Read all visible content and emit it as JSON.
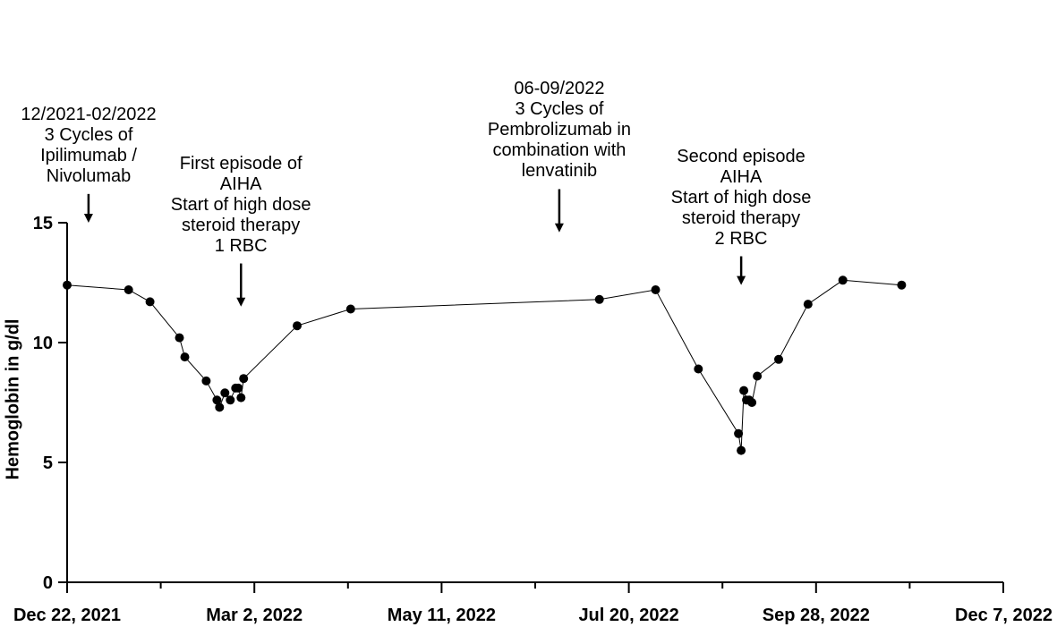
{
  "chart_data": {
    "type": "scatter",
    "ylabel": "Hemoglobin in g/dl",
    "xlabel": "",
    "ylim": [
      0,
      15
    ],
    "xlim": [
      "2021-12-22",
      "2022-12-07"
    ],
    "x_ticks": [
      "Dec 22, 2021",
      "Mar 2, 2022",
      "May 11, 2022",
      "Jul 20, 2022",
      "Sep 28, 2022",
      "Dec 7, 2022"
    ],
    "y_ticks": [
      "0",
      "5",
      "10",
      "15"
    ],
    "line": true,
    "points": [
      {
        "x": "2021-12-22",
        "y": 12.4
      },
      {
        "x": "2022-01-14",
        "y": 12.2
      },
      {
        "x": "2022-01-22",
        "y": 11.7
      },
      {
        "x": "2022-02-02",
        "y": 10.2
      },
      {
        "x": "2022-02-04",
        "y": 9.4
      },
      {
        "x": "2022-02-12",
        "y": 8.4
      },
      {
        "x": "2022-02-16",
        "y": 7.6
      },
      {
        "x": "2022-02-17",
        "y": 7.3
      },
      {
        "x": "2022-02-19",
        "y": 7.9
      },
      {
        "x": "2022-02-21",
        "y": 7.6
      },
      {
        "x": "2022-02-23",
        "y": 8.1
      },
      {
        "x": "2022-02-24",
        "y": 8.1
      },
      {
        "x": "2022-02-25",
        "y": 7.7
      },
      {
        "x": "2022-02-26",
        "y": 8.5
      },
      {
        "x": "2022-03-18",
        "y": 10.7
      },
      {
        "x": "2022-04-07",
        "y": 11.4
      },
      {
        "x": "2022-07-09",
        "y": 11.8
      },
      {
        "x": "2022-07-30",
        "y": 12.2
      },
      {
        "x": "2022-08-15",
        "y": 8.9
      },
      {
        "x": "2022-08-30",
        "y": 6.2
      },
      {
        "x": "2022-08-31",
        "y": 5.5
      },
      {
        "x": "2022-09-01",
        "y": 8.0
      },
      {
        "x": "2022-09-02",
        "y": 7.6
      },
      {
        "x": "2022-09-03",
        "y": 7.6
      },
      {
        "x": "2022-09-04",
        "y": 7.5
      },
      {
        "x": "2022-09-06",
        "y": 8.6
      },
      {
        "x": "2022-09-14",
        "y": 9.3
      },
      {
        "x": "2022-09-25",
        "y": 11.6
      },
      {
        "x": "2022-10-08",
        "y": 12.6
      },
      {
        "x": "2022-10-30",
        "y": 12.4
      }
    ],
    "annotations": [
      {
        "id": "ann1",
        "lines": [
          "12/2021-02/2022",
          "3 Cycles of",
          "Ipilimumab  /",
          "Nivolumab"
        ],
        "arrow_x": "2021-12-30",
        "arrow_y_top": 16.2,
        "arrow_y_bottom": 15.0
      },
      {
        "id": "ann2",
        "lines": [
          "First episode of",
          "AIHA",
          "Start of high dose",
          "steroid therapy",
          "1 RBC"
        ],
        "arrow_x": "2022-02-25",
        "arrow_y_top": 13.3,
        "arrow_y_bottom": 11.5
      },
      {
        "id": "ann3",
        "lines": [
          "06-09/2022",
          "3 Cycles of",
          "Pembrolizumab  in",
          "combination with",
          "lenvatinib"
        ],
        "arrow_x": "2022-06-24",
        "arrow_y_top": 16.4,
        "arrow_y_bottom": 14.6
      },
      {
        "id": "ann4",
        "lines": [
          "Second episode",
          "AIHA",
          "Start of high dose",
          "steroid therapy",
          "2 RBC"
        ],
        "arrow_x": "2022-08-31",
        "arrow_y_top": 13.6,
        "arrow_y_bottom": 12.4
      }
    ]
  }
}
